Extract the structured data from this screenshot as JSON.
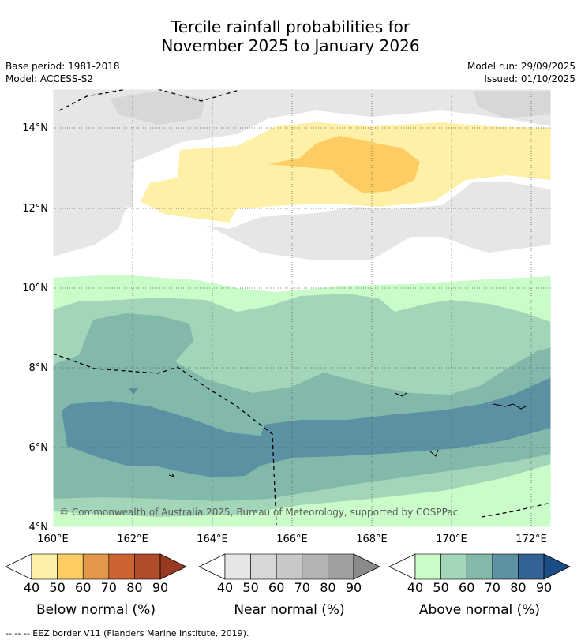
{
  "title_line1": "Tercile rainfall probabilities for",
  "title_line2": "November 2025 to January 2026",
  "base_period": "Base period: 1981-2018",
  "model": "Model: ACCESS-S2",
  "model_run": "Model run: 29/09/2025",
  "issued": "Issued: 01/10/2025",
  "copyright": "© Commonwealth of Australia 2025, Bureau of Meteorology, supported by COSPPac",
  "lat_labels": [
    "4°N",
    "6°N",
    "8°N",
    "10°N",
    "12°N",
    "14°N"
  ],
  "lon_labels": [
    "160°E",
    "162°E",
    "164°E",
    "166°E",
    "168°E",
    "170°E",
    "172°E"
  ],
  "colorbars": [
    {
      "title": "Below normal (%)",
      "ticks": [
        "40",
        "50",
        "60",
        "70",
        "80",
        "90"
      ],
      "colors": [
        "#fef0a6",
        "#fdcc63",
        "#e3974a",
        "#cd6331",
        "#b04b2b",
        "#983a22"
      ]
    },
    {
      "title": "Near normal (%)",
      "ticks": [
        "40",
        "50",
        "60",
        "70",
        "80",
        "90"
      ],
      "colors": [
        "#e6e6e6",
        "#d7d7d7",
        "#c8c8c8",
        "#b3b3b3",
        "#a0a0a0",
        "#8a8a8a"
      ]
    },
    {
      "title": "Above normal (%)",
      "ticks": [
        "40",
        "50",
        "60",
        "70",
        "80",
        "90"
      ],
      "colors": [
        "#c9fcc8",
        "#a3d6b9",
        "#82b9aa",
        "#5c91a3",
        "#336495",
        "#1a4c85"
      ]
    }
  ],
  "footnote": "--  --  -- EEZ border V11 (Flanders Marine Institute, 2019)."
}
